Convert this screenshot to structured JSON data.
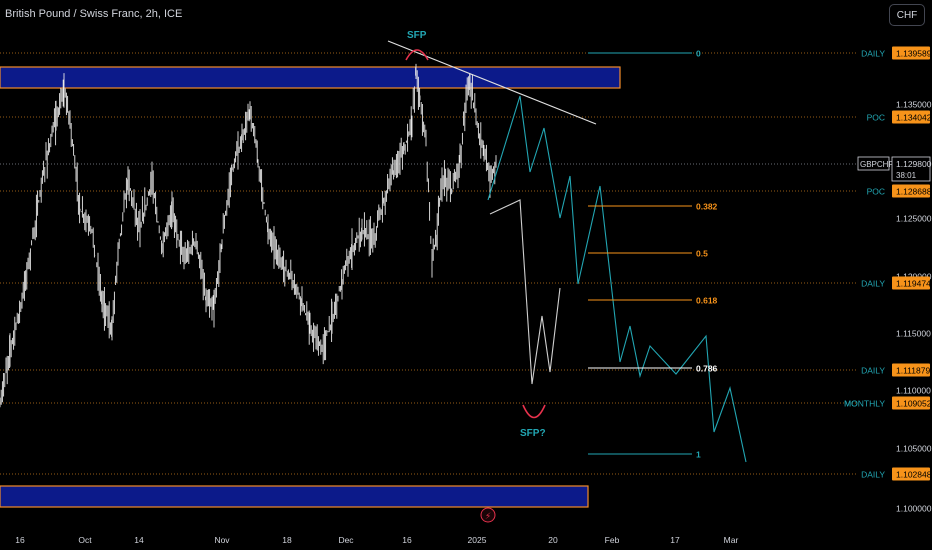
{
  "header": {
    "title": "British Pound / Swiss Franc, 2h, ICE",
    "currency": "CHF"
  },
  "colors": {
    "accent": "#2962ff",
    "teal": "#22a6b3",
    "orange": "#f7931a",
    "zone": "#0c1a8a",
    "zone_border": "#f28c28"
  },
  "chart_data": {
    "type": "line",
    "x_ticks": [
      "16",
      "Oct",
      "14",
      "Nov",
      "18",
      "Dec",
      "16",
      "2025",
      "20",
      "Feb",
      "17",
      "Mar"
    ],
    "y_ticks": [
      "1.135000",
      "1.125000",
      "1.120000",
      "1.115000",
      "1.110000",
      "1.105000",
      "1.100000"
    ],
    "ylim": [
      1.0984,
      1.1418
    ],
    "current_price": {
      "symbol": "GBPCHF",
      "value": "1.129800",
      "countdown": "38:01"
    },
    "price_series_description_points": [
      {
        "x": "Sep 10",
        "y": 1.1025
      },
      {
        "x": "Sep 22",
        "y": 1.1345
      },
      {
        "x": "Sep 30",
        "y": 1.1368
      },
      {
        "x": "Oct 8",
        "y": 1.121
      },
      {
        "x": "Oct 18",
        "y": 1.112
      },
      {
        "x": "Oct 28",
        "y": 1.1235
      },
      {
        "x": "Nov 8",
        "y": 1.135
      },
      {
        "x": "Nov 22",
        "y": 1.1125
      },
      {
        "x": "Dec 2",
        "y": 1.118
      },
      {
        "x": "Dec 12",
        "y": 1.128
      },
      {
        "x": "Dec 17",
        "y": 1.1395
      },
      {
        "x": "Dec 23",
        "y": 1.125
      },
      {
        "x": "Dec 30",
        "y": 1.137
      },
      {
        "x": "Jan 3",
        "y": 1.1298
      }
    ],
    "levels": [
      {
        "label": "DAILY",
        "value": "1.139589"
      },
      {
        "label": "POC",
        "value": "1.134042"
      },
      {
        "label": "POC",
        "value": "1.128688"
      },
      {
        "label": "DAILY",
        "value": "1.119474"
      },
      {
        "label": "DAILY",
        "value": "1.111879"
      },
      {
        "label": "MONTHLY",
        "value": "1.109052"
      },
      {
        "label": "DAILY",
        "value": "1.102848"
      }
    ],
    "fib_levels": [
      {
        "label": "0",
        "value": 1.1396
      },
      {
        "label": "0.382",
        "value": 1.1265
      },
      {
        "label": "0.5",
        "value": 1.1223
      },
      {
        "label": "0.618",
        "value": 1.1184
      },
      {
        "label": "0.786",
        "value": 1.112
      },
      {
        "label": "1",
        "value": 1.1048
      }
    ],
    "annotations": [
      "SFP",
      "SFP?"
    ],
    "zones": [
      {
        "name": "supply",
        "from": 1.1365,
        "to": 1.1385
      },
      {
        "name": "demand",
        "from": 1.1002,
        "to": 1.1022
      }
    ]
  }
}
